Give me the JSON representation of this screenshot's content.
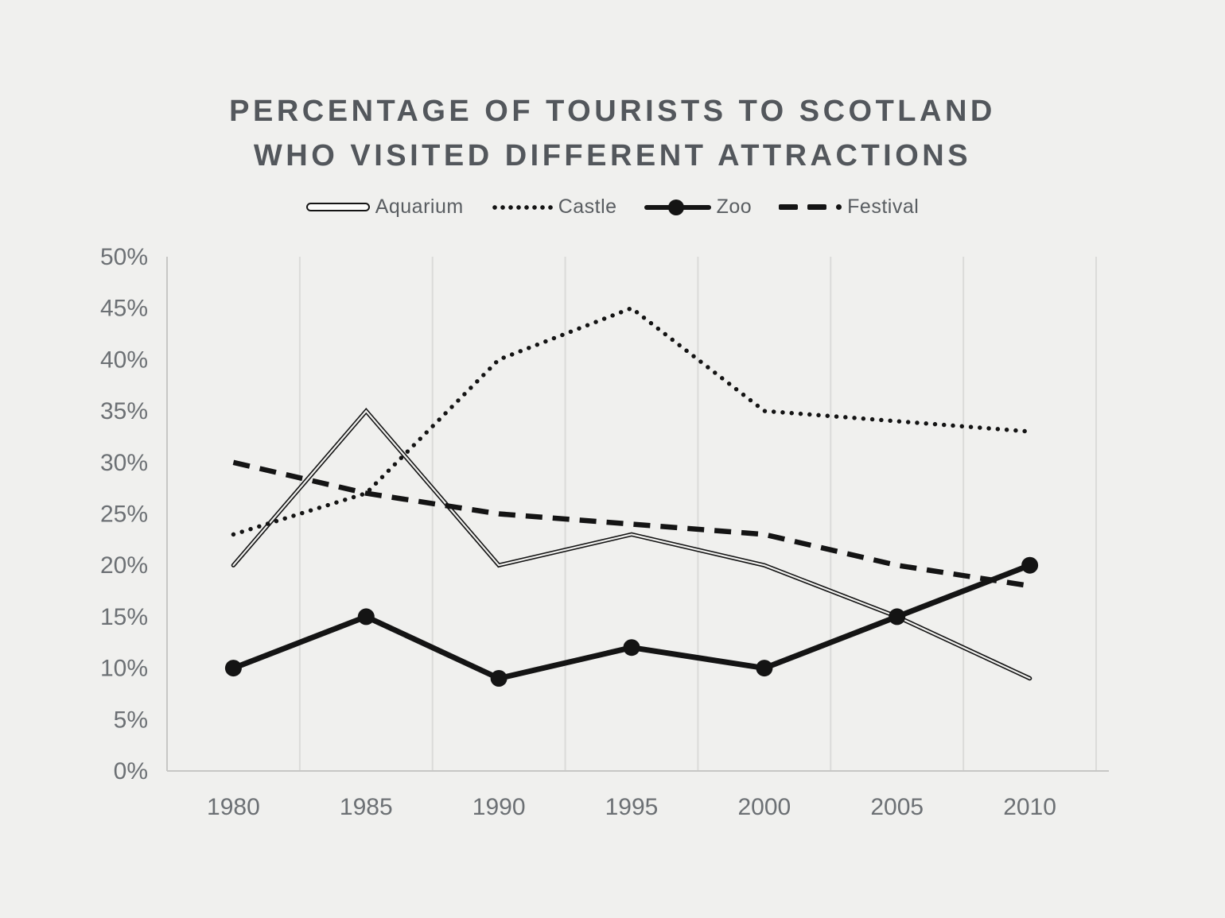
{
  "page": {
    "background_color": "#f0f0ee"
  },
  "chart_data": {
    "type": "line",
    "title": "PERCENTAGE OF TOURISTS TO SCOTLAND WHO VISITED DIFFERENT ATTRACTIONS",
    "title_lines": [
      "PERCENTAGE OF TOURISTS TO SCOTLAND",
      "WHO VISITED DIFFERENT ATTRACTIONS"
    ],
    "categories": [
      "1980",
      "1985",
      "1990",
      "1995",
      "2000",
      "2005",
      "2010"
    ],
    "series": [
      {
        "name": "Aquarium",
        "style": "double-line",
        "color": "#141414",
        "values": [
          20,
          35,
          20,
          23,
          20,
          15,
          9
        ]
      },
      {
        "name": "Castle",
        "style": "dotted",
        "color": "#141414",
        "values": [
          23,
          27,
          40,
          45,
          35,
          34,
          33
        ]
      },
      {
        "name": "Zoo",
        "style": "solid-markers",
        "color": "#141414",
        "values": [
          10,
          15,
          9,
          12,
          10,
          15,
          20
        ]
      },
      {
        "name": "Festival",
        "style": "dashed",
        "color": "#141414",
        "values": [
          30,
          27,
          25,
          24,
          23,
          20,
          18
        ]
      }
    ],
    "xlabel": "",
    "ylabel": "",
    "ylim": [
      0,
      50
    ],
    "y_tick_step": 5,
    "y_tick_labels": [
      "0%",
      "5%",
      "10%",
      "15%",
      "20%",
      "25%",
      "30%",
      "35%",
      "40%",
      "45%",
      "50%"
    ],
    "grid": "vertical-only",
    "legend_position": "top",
    "unit": "%",
    "colors": {
      "line": "#141414",
      "gridline": "#dbdbd9",
      "axis": "#c7c7c5",
      "tick_label": "#6c7074",
      "title": "#53575c",
      "legend_label": "#595d61",
      "background": "#f0f0ee"
    }
  }
}
